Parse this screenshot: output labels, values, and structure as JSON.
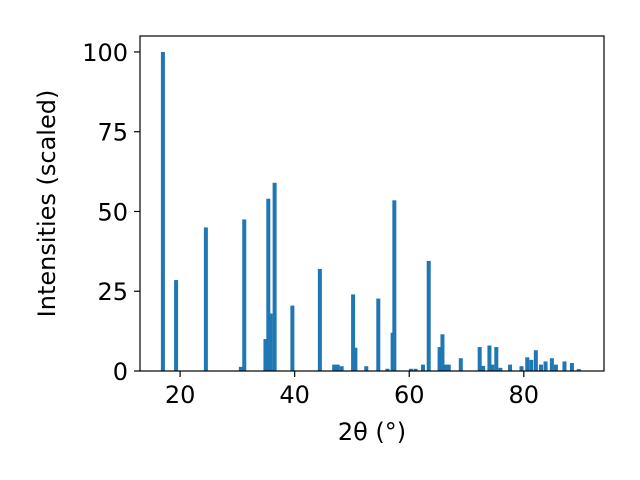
{
  "chart_data": {
    "type": "bar",
    "title": "",
    "xlabel": "2θ (°)",
    "ylabel": "Intensities (scaled)",
    "xlim": [
      13,
      94
    ],
    "ylim": [
      0,
      105
    ],
    "xticks": [
      "20",
      "40",
      "60",
      "80"
    ],
    "yticks": [
      "0",
      "25",
      "50",
      "75",
      "100"
    ],
    "grid": false,
    "bar_color": "#1f77b4",
    "bar_width": 0.7,
    "series": [
      {
        "x": [
          17.0,
          19.3,
          24.5,
          30.6,
          31.2,
          34.9,
          35.4,
          35.8,
          36.5,
          39.6,
          44.4,
          46.9,
          47.5,
          48.2,
          50.2,
          50.6,
          52.5,
          54.6,
          56.2,
          57.1,
          57.4,
          60.3,
          61.1,
          62.4,
          63.4,
          65.3,
          65.8,
          66.3,
          66.9,
          69.0,
          72.3,
          72.9,
          74.0,
          74.5,
          75.2,
          75.9,
          77.6,
          79.6,
          80.6,
          81.3,
          82.1,
          83.0,
          83.8,
          84.9,
          85.6,
          87.1,
          88.4,
          89.6
        ],
        "y": [
          100,
          28.5,
          45,
          1.3,
          47.5,
          10,
          54,
          18,
          59,
          20.5,
          32,
          2,
          2,
          1.5,
          24,
          7.3,
          1.5,
          22.7,
          0.7,
          12,
          53.5,
          0.7,
          0.7,
          2,
          34.5,
          7.5,
          11.5,
          2,
          2,
          4,
          7.5,
          1.6,
          8,
          2,
          7.5,
          1,
          2,
          1.5,
          4.3,
          3.5,
          6.5,
          2,
          3,
          4,
          2,
          3,
          2.5,
          0.6
        ]
      }
    ]
  }
}
